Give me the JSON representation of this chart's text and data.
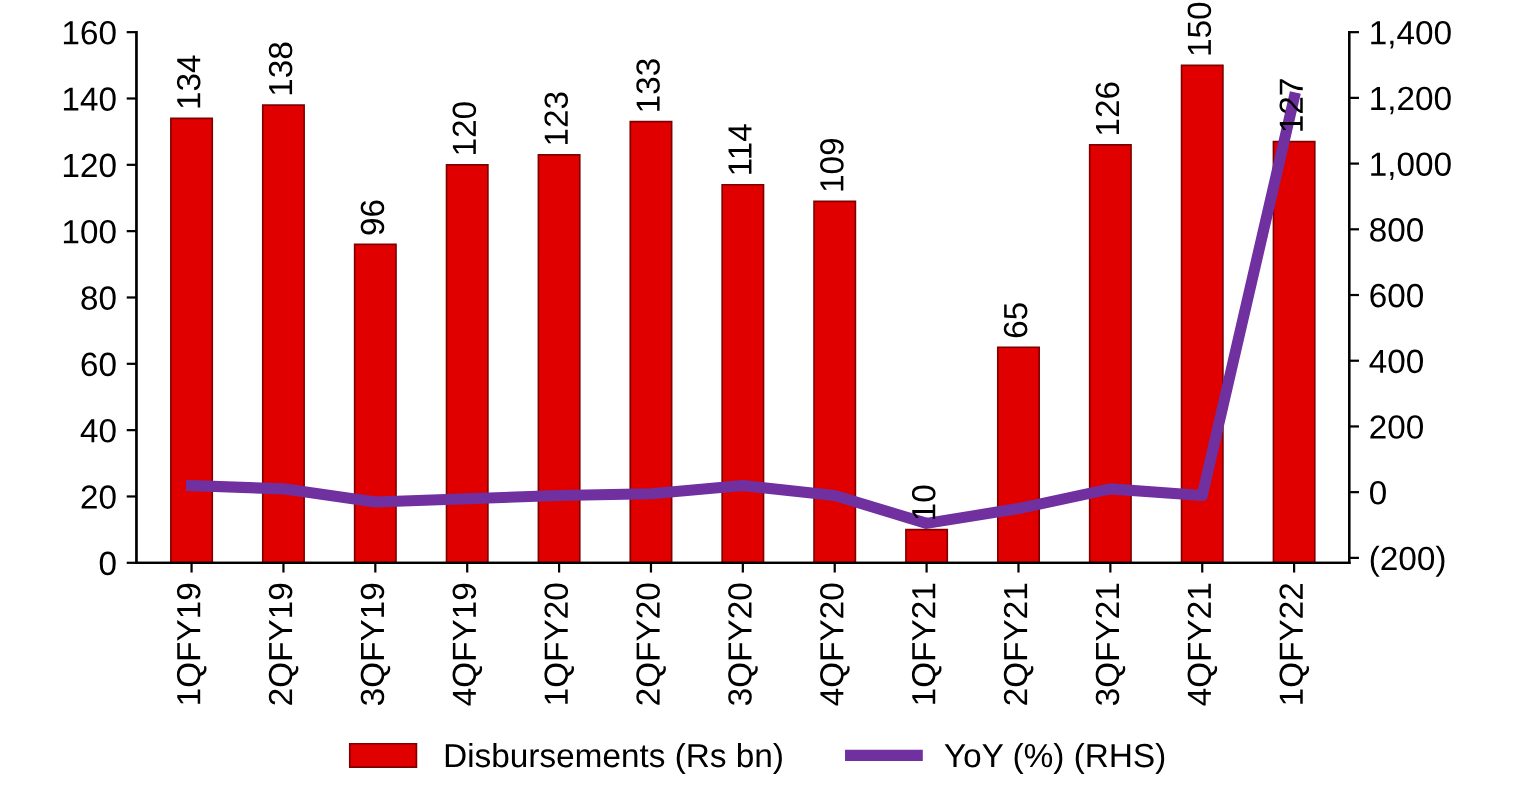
{
  "chart_data": {
    "type": "bar",
    "categories": [
      "1QFY19",
      "2QFY19",
      "3QFY19",
      "4QFY19",
      "1QFY20",
      "2QFY20",
      "3QFY20",
      "4QFY20",
      "1QFY21",
      "2QFY21",
      "3QFY21",
      "4QFY21",
      "1QFY22"
    ],
    "series": [
      {
        "name": "Disbursements (Rs bn)",
        "color": "#e00000",
        "values": [
          134,
          138,
          96,
          120,
          123,
          133,
          114,
          109,
          10,
          65,
          126,
          150,
          127
        ],
        "value_labels": [
          "134",
          "138",
          "96",
          "120",
          "123",
          "133",
          "114",
          "109",
          "10",
          "65",
          "126",
          "150",
          "127"
        ]
      },
      {
        "name": "YoY (%) (RHS)",
        "type": "line",
        "axis": "y2",
        "color": "#7030a0",
        "values": [
          20,
          10,
          -30,
          -20,
          -10,
          -5,
          20,
          -10,
          -95,
          -50,
          10,
          -10,
          1200
        ]
      }
    ],
    "ylim": [
      0,
      160
    ],
    "yticks": [
      0,
      20,
      40,
      60,
      80,
      100,
      120,
      140,
      160
    ],
    "y2lim": [
      -215,
      1400
    ],
    "y2ticks": [
      {
        "value": -200,
        "label": "(200)"
      },
      0,
      200,
      400,
      600,
      800,
      {
        "value": 1000,
        "label": "1,000"
      },
      {
        "value": 1200,
        "label": "1,200"
      },
      {
        "value": 1400,
        "label": "1,400"
      }
    ],
    "legend": "bottom",
    "grid": false,
    "marker": "none",
    "line_style": "solid"
  }
}
